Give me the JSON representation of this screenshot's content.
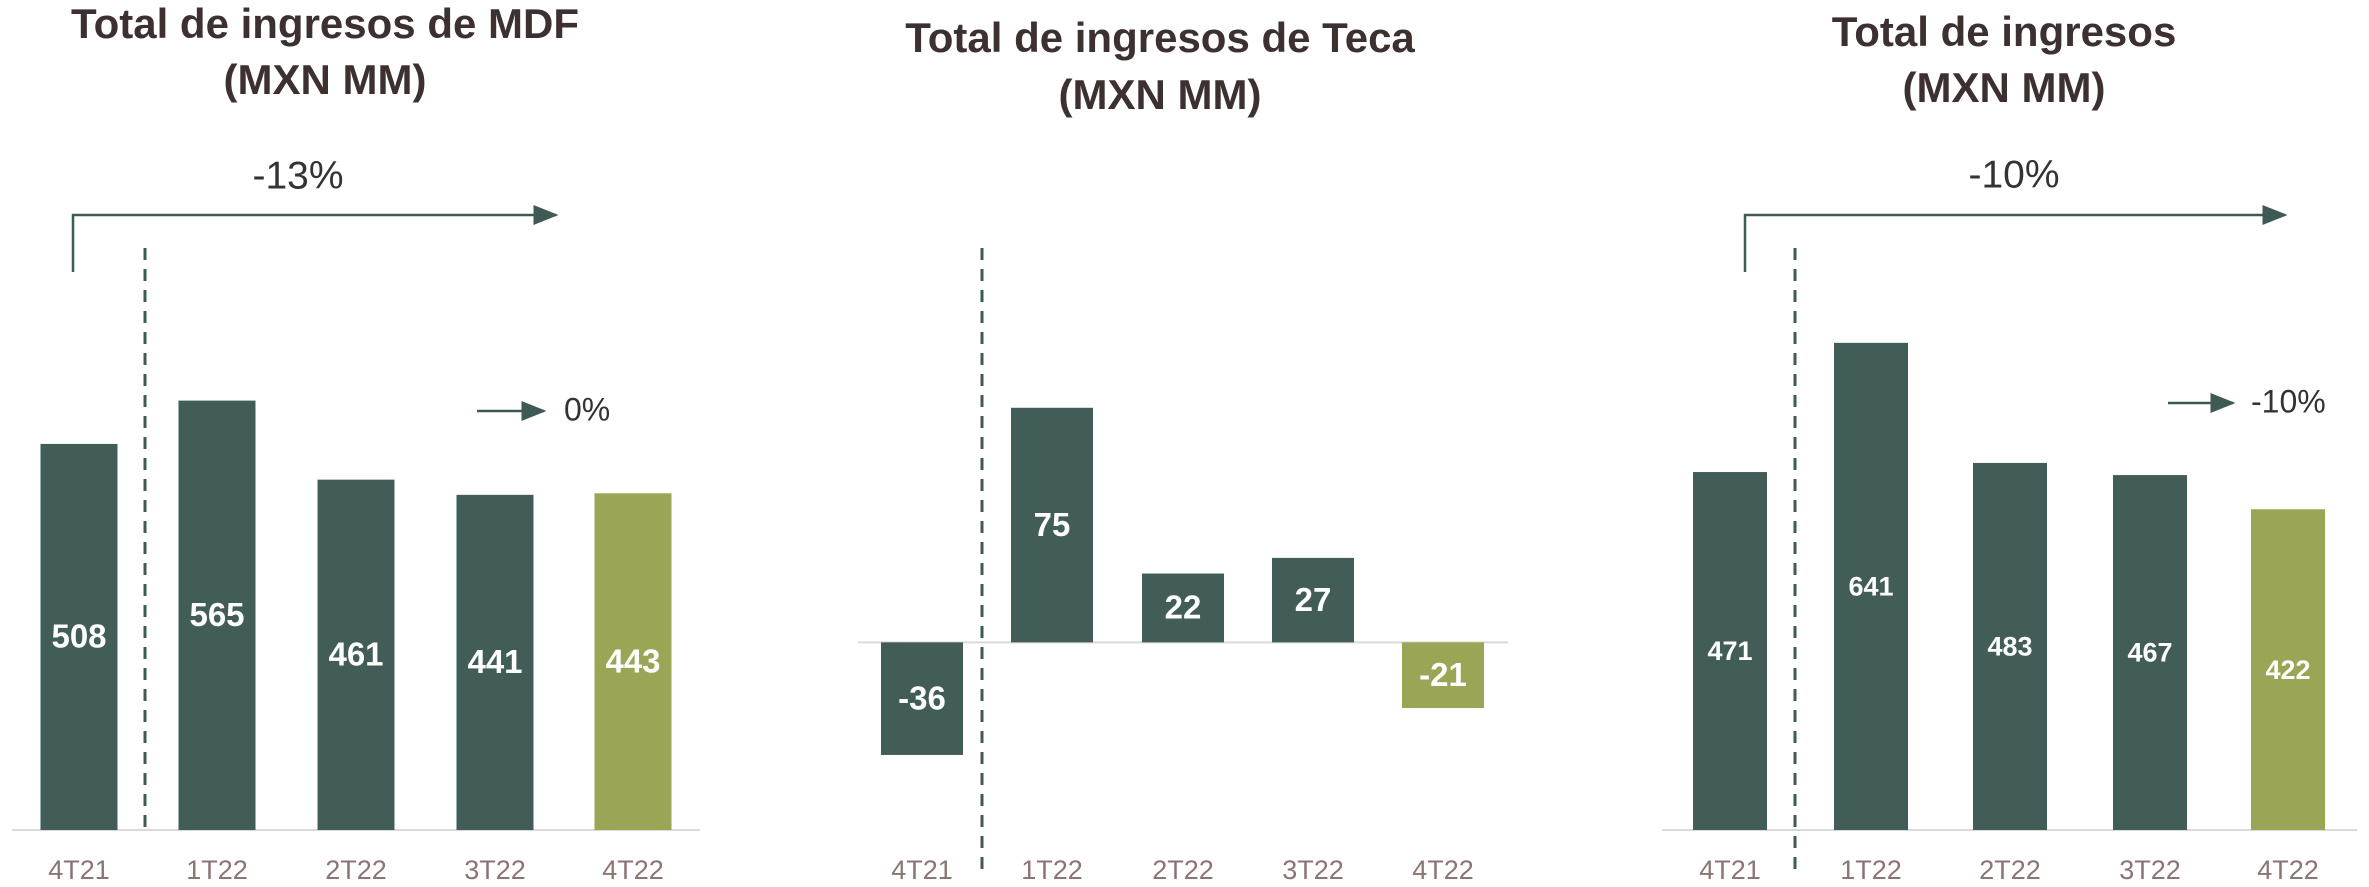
{
  "chart_data": [
    {
      "type": "bar",
      "title": "Total de ingresos de MDF",
      "subtitle": "(MXN MM)",
      "categories": [
        "4T21",
        "1T22",
        "2T22",
        "3T22",
        "4T22"
      ],
      "values": [
        508,
        565,
        461,
        441,
        443
      ],
      "colors": [
        "#425c58",
        "#425c58",
        "#425c58",
        "#425c58",
        "#9aa655"
      ],
      "ylim": [
        0,
        1000
      ],
      "annotations": [
        "-13%",
        "0%"
      ]
    },
    {
      "type": "bar",
      "title": "Total de ingresos de Teca",
      "subtitle": "(MXN MM)",
      "categories": [
        "4T21",
        "1T22",
        "2T22",
        "3T22",
        "4T22"
      ],
      "values": [
        -36,
        75,
        22,
        27,
        -21
      ],
      "colors": [
        "#425c58",
        "#425c58",
        "#425c58",
        "#425c58",
        "#9aa655"
      ],
      "ylim": [
        -60,
        183
      ],
      "annotations": []
    },
    {
      "type": "bar",
      "title": "Total de ingresos",
      "subtitle": "(MXN MM)",
      "categories": [
        "4T21",
        "1T22",
        "2T22",
        "3T22",
        "4T22"
      ],
      "values": [
        471,
        641,
        483,
        467,
        422
      ],
      "colors": [
        "#425c58",
        "#425c58",
        "#425c58",
        "#425c58",
        "#9aa655"
      ],
      "ylim": [
        0,
        1000
      ],
      "annotations": [
        "-10%",
        "-10%"
      ]
    }
  ]
}
